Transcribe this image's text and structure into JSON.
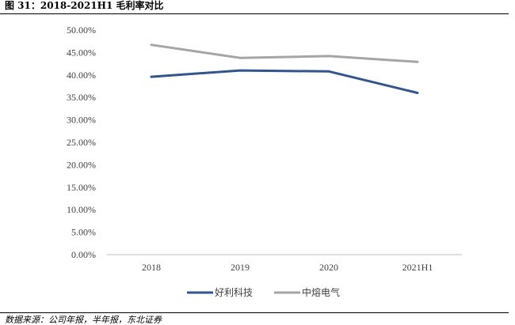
{
  "figure": {
    "title": "图 31：2018-2021H1 毛利率对比",
    "source": "数据来源：公司年报，半年报，东北证券"
  },
  "colors": {
    "series_1": "#2f5597",
    "series_2": "#a5a5a5",
    "axis": "#bfbfbf"
  },
  "chart_data": {
    "type": "line",
    "title": "",
    "xlabel": "",
    "ylabel": "",
    "categories": [
      "2018",
      "2019",
      "2020",
      "2021H1"
    ],
    "ylim": [
      0,
      50
    ],
    "yticks": [
      0,
      5,
      10,
      15,
      20,
      25,
      30,
      35,
      40,
      45,
      50
    ],
    "ytick_labels": [
      "0.00%",
      "5.00%",
      "10.00%",
      "15.00%",
      "20.00%",
      "25.00%",
      "30.00%",
      "35.00%",
      "40.00%",
      "45.00%",
      "50.00%"
    ],
    "grid": false,
    "legend_position": "bottom",
    "series": [
      {
        "name": "好利科技",
        "values": [
          39.6,
          41.0,
          40.8,
          36.0
        ]
      },
      {
        "name": "中熔电气",
        "values": [
          46.7,
          43.8,
          44.2,
          42.9
        ]
      }
    ]
  }
}
